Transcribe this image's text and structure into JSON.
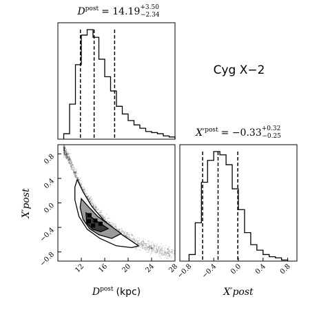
{
  "annotation": "Cyg X−2",
  "chart_data": [
    {
      "type": "histogram",
      "panel": "D_post_marginal",
      "title": "D^post = 14.19 (+3.50, −2.34)",
      "title_parts": {
        "var": "D",
        "sup": "post",
        "value": "= 14.19",
        "plus": "+3.50",
        "minus": "−2.34"
      },
      "xlim": [
        8,
        28
      ],
      "bin_edges": [
        9,
        10,
        11,
        12,
        13,
        14,
        15,
        16,
        17,
        18,
        19,
        20,
        21,
        22,
        23,
        24,
        25,
        26,
        27,
        28
      ],
      "counts": [
        0.05,
        0.32,
        0.68,
        0.95,
        1.0,
        0.93,
        0.73,
        0.57,
        0.44,
        0.3,
        0.23,
        0.17,
        0.13,
        0.1,
        0.07,
        0.06,
        0.05,
        0.03,
        0.02
      ],
      "quantile_lines": [
        11.85,
        14.19,
        17.69
      ]
    },
    {
      "type": "histogram",
      "panel": "X_post_marginal",
      "title": "X′^post = −0.33 (+0.32, −0.25)",
      "title_parts": {
        "var": "X′",
        "sup": "post",
        "value": "= −0.33",
        "plus": "+0.32",
        "minus": "−0.25"
      },
      "xlabel": "X′post",
      "xlim": [
        -0.95,
        0.95
      ],
      "ticks": [
        "−0.8",
        "−0.4",
        "0.0",
        "0.4",
        "0.8"
      ],
      "tick_values": [
        -0.8,
        -0.4,
        0.0,
        0.4,
        0.8
      ],
      "bin_edges": [
        -0.8,
        -0.7,
        -0.6,
        -0.5,
        -0.4,
        -0.3,
        -0.2,
        -0.1,
        0.0,
        0.1,
        0.2,
        0.3,
        0.4,
        0.5,
        0.6,
        0.7,
        0.8
      ],
      "counts": [
        0.06,
        0.35,
        0.72,
        0.92,
        1.0,
        0.97,
        0.88,
        0.66,
        0.47,
        0.26,
        0.15,
        0.1,
        0.06,
        0.04,
        0.03,
        0.01
      ],
      "quantile_lines": [
        -0.58,
        -0.33,
        -0.01
      ]
    },
    {
      "type": "heatmap",
      "panel": "D_vs_X_joint",
      "xlabel": "D post (kpc)",
      "xlabel_parts": {
        "var": "D",
        "sup": "post",
        "unit": "(kpc)"
      },
      "ylabel": "X′post",
      "xlim": [
        8,
        28
      ],
      "ylim": [
        -0.95,
        0.95
      ],
      "xticks": [
        "12",
        "16",
        "20",
        "24",
        "28"
      ],
      "xtick_values": [
        12,
        16,
        20,
        24,
        28
      ],
      "yticks": [
        "−0.8",
        "−0.4",
        "0.0",
        "0.4",
        "0.8"
      ],
      "ytick_values": [
        -0.8,
        -0.4,
        0.0,
        0.4,
        0.8
      ],
      "ridge": [
        [
          9,
          0.88
        ],
        [
          10,
          0.7
        ],
        [
          11,
          0.47
        ],
        [
          12,
          0.24
        ],
        [
          13,
          0.08
        ],
        [
          14,
          -0.06
        ],
        [
          15,
          -0.18
        ],
        [
          16,
          -0.28
        ],
        [
          17,
          -0.37
        ],
        [
          18,
          -0.45
        ],
        [
          19,
          -0.52
        ],
        [
          20,
          -0.58
        ],
        [
          21,
          -0.63
        ],
        [
          22,
          -0.67
        ],
        [
          23,
          -0.71
        ],
        [
          24,
          -0.74
        ],
        [
          25,
          -0.77
        ],
        [
          26,
          -0.8
        ],
        [
          27,
          -0.82
        ],
        [
          28,
          -0.84
        ]
      ],
      "contours": [
        {
          "level": "outer",
          "points": [
            [
              11.3,
              0.38
            ],
            [
              12.3,
              0.18
            ],
            [
              13.8,
              -0.06
            ],
            [
              15.8,
              -0.28
            ],
            [
              18.0,
              -0.46
            ],
            [
              20.5,
              -0.62
            ],
            [
              21.8,
              -0.7
            ],
            [
              20.6,
              -0.73
            ],
            [
              18.0,
              -0.7
            ],
            [
              15.2,
              -0.58
            ],
            [
              13.0,
              -0.43
            ],
            [
              11.6,
              -0.22
            ],
            [
              10.9,
              0.05
            ],
            [
              10.9,
              0.26
            ]
          ]
        },
        {
          "level": "mid",
          "points": [
            [
              12.0,
              0.07
            ],
            [
              13.2,
              -0.06
            ],
            [
              14.8,
              -0.22
            ],
            [
              16.8,
              -0.36
            ],
            [
              18.8,
              -0.5
            ],
            [
              17.2,
              -0.58
            ],
            [
              15.0,
              -0.52
            ],
            [
              13.4,
              -0.42
            ],
            [
              12.3,
              -0.27
            ],
            [
              11.8,
              -0.08
            ]
          ]
        },
        {
          "level": "inner",
          "points": [
            [
              12.8,
              -0.16
            ],
            [
              13.8,
              -0.24
            ],
            [
              15.3,
              -0.34
            ],
            [
              16.6,
              -0.42
            ],
            [
              15.3,
              -0.47
            ],
            [
              13.9,
              -0.43
            ],
            [
              12.9,
              -0.33
            ]
          ]
        }
      ]
    }
  ]
}
